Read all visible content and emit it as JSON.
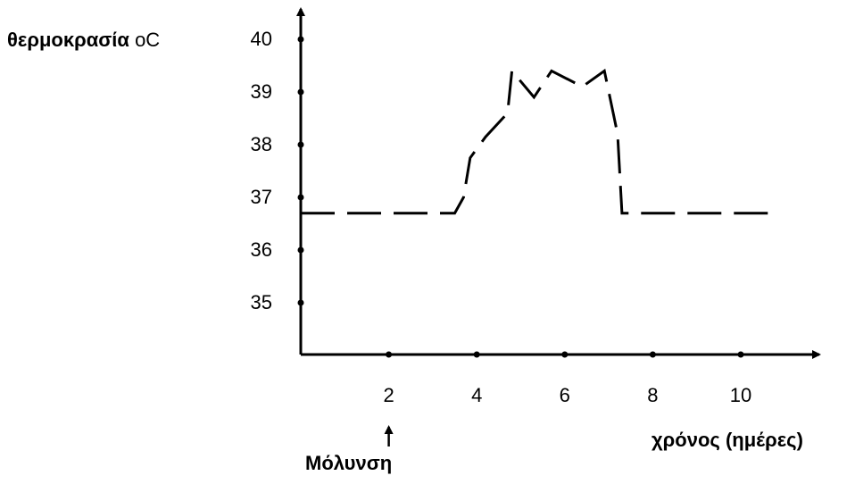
{
  "chart_data": {
    "type": "line",
    "ylabel_bold": "θερμοκρασία",
    "ylabel_unit": "oC",
    "xlabel": "χρόνος (ημέρες)",
    "annotation": {
      "label": "Μόλυνση",
      "x": 2
    },
    "x_ticks": [
      2,
      4,
      6,
      8,
      10
    ],
    "y_ticks": [
      35,
      36,
      37,
      38,
      39,
      40
    ],
    "xlim": [
      0,
      11.5
    ],
    "ylim": [
      34.4,
      40.6
    ],
    "line_style": "dashed",
    "series": [
      {
        "points": [
          {
            "x": 0.0,
            "y": 36.7
          },
          {
            "x": 3.5,
            "y": 36.7
          },
          {
            "x": 3.7,
            "y": 37.0
          },
          {
            "x": 3.85,
            "y": 37.75
          },
          {
            "x": 4.2,
            "y": 38.15
          },
          {
            "x": 4.7,
            "y": 38.6
          },
          {
            "x": 4.8,
            "y": 39.4
          },
          {
            "x": 5.3,
            "y": 38.9
          },
          {
            "x": 5.7,
            "y": 39.4
          },
          {
            "x": 6.4,
            "y": 39.1
          },
          {
            "x": 6.9,
            "y": 39.4
          },
          {
            "x": 7.2,
            "y": 38.2
          },
          {
            "x": 7.3,
            "y": 36.7
          },
          {
            "x": 10.8,
            "y": 36.7
          }
        ]
      }
    ],
    "colors": {
      "line": "#000000",
      "axis": "#000000"
    }
  }
}
